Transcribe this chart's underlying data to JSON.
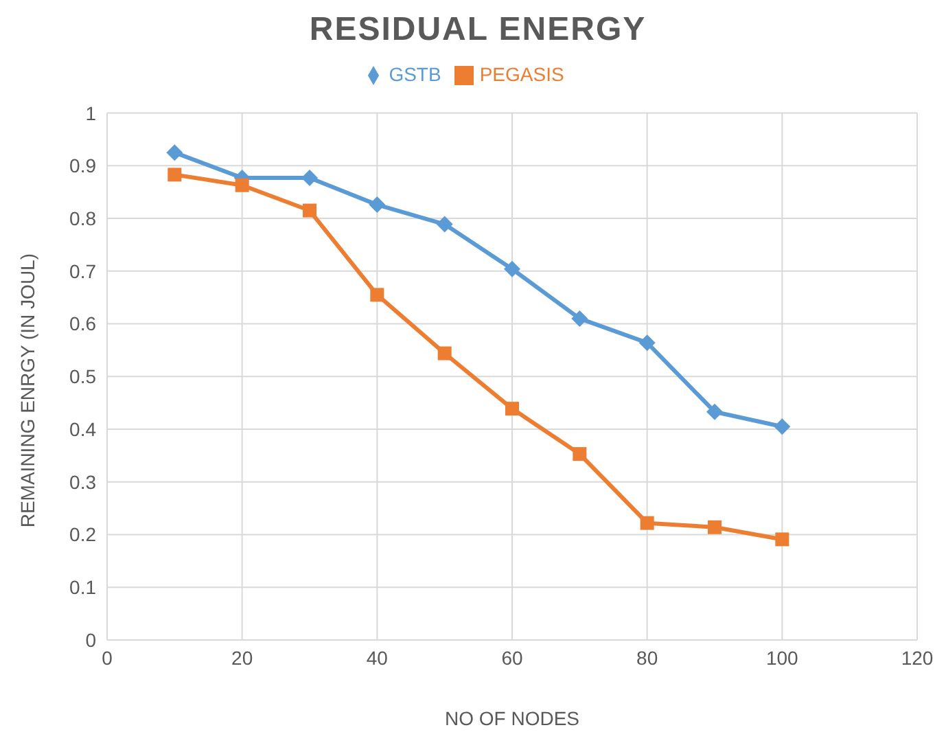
{
  "chart_data": {
    "type": "line",
    "title": "RESIDUAL ENERGY",
    "xlabel": "NO OF NODES",
    "ylabel": "REMAINING ENRGY (IN JOUL)",
    "x": [
      10,
      20,
      30,
      40,
      50,
      60,
      70,
      80,
      90,
      100
    ],
    "series": [
      {
        "name": "GSTB",
        "color": "#5b9bd5",
        "marker": "diamond",
        "values": [
          0.925,
          0.877,
          0.877,
          0.826,
          0.789,
          0.704,
          0.61,
          0.564,
          0.433,
          0.405
        ]
      },
      {
        "name": "PEGASIS",
        "color": "#ed7d31",
        "marker": "square",
        "values": [
          0.883,
          0.863,
          0.815,
          0.655,
          0.544,
          0.439,
          0.353,
          0.222,
          0.214,
          0.191
        ]
      }
    ],
    "xlim": [
      0,
      120
    ],
    "xticks": [
      0,
      20,
      40,
      60,
      80,
      100,
      120
    ],
    "ylim": [
      0,
      1
    ],
    "yticks": [
      0,
      0.1,
      0.2,
      0.3,
      0.4,
      0.5,
      0.6,
      0.7,
      0.8,
      0.9,
      1
    ],
    "grid": true,
    "legend": "top",
    "line_style": "solid"
  }
}
